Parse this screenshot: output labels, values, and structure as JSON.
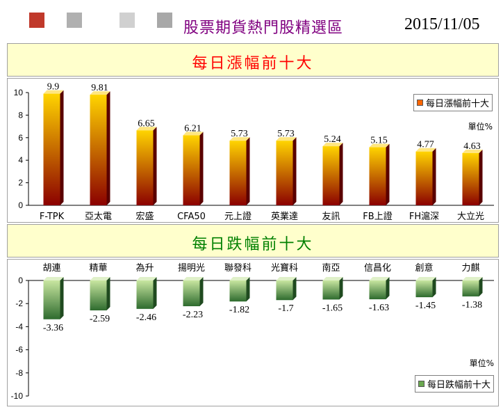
{
  "header": {
    "title": "股票期貨熱門股精選區",
    "date": "2015/11/05"
  },
  "colors": {
    "gain_dark": "#8b0000",
    "gain_light": "#ffd400",
    "loss_dark": "#2e6b2e",
    "loss_light": "#c8e6a0",
    "band_bg": "#ffffcc"
  },
  "sections": {
    "gainers_title": "每日漲幅前十大",
    "losers_title": "每日跌幅前十大"
  },
  "chart_data": [
    {
      "type": "bar",
      "title": "每日漲幅前十大",
      "legend": "每日漲幅前十大",
      "legend_position": "top-right",
      "unit": "單位%",
      "categories": [
        "F-TPK",
        "亞太電",
        "宏盛",
        "CFA50",
        "元上證",
        "英業達",
        "友訊",
        "FB上證",
        "FH滬深",
        "大立光"
      ],
      "values": [
        9.9,
        9.81,
        6.65,
        6.21,
        5.73,
        5.73,
        5.24,
        5.15,
        4.77,
        4.63
      ],
      "value_labels": [
        "9.9",
        "9.81",
        "6.65",
        "6.21",
        "5.73",
        "5.73",
        "5.24",
        "5.15",
        "4.77",
        "4.63"
      ],
      "ylim": [
        0,
        10
      ],
      "yticks": [
        "0",
        "2",
        "4",
        "6",
        "8",
        "10"
      ],
      "grid": false
    },
    {
      "type": "bar",
      "title": "每日跌幅前十大",
      "legend": "每日跌幅前十大",
      "legend_position": "bottom-right",
      "unit": "單位%",
      "categories": [
        "胡連",
        "精華",
        "為升",
        "揚明光",
        "聯發科",
        "光寶科",
        "南亞",
        "信昌化",
        "創意",
        "力麒"
      ],
      "values": [
        -3.36,
        -2.59,
        -2.46,
        -2.23,
        -1.82,
        -1.7,
        -1.65,
        -1.63,
        -1.45,
        -1.38
      ],
      "value_labels": [
        "-3.36",
        "-2.59",
        "-2.46",
        "-2.23",
        "-1.82",
        "-1.7",
        "-1.65",
        "-1.63",
        "-1.45",
        "-1.38"
      ],
      "ylim": [
        -10,
        0
      ],
      "yticks": [
        "0",
        "-2",
        "-4",
        "-6",
        "-8",
        "-10"
      ],
      "grid": false
    }
  ]
}
